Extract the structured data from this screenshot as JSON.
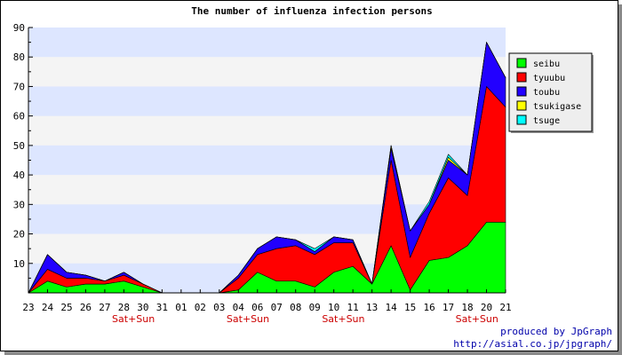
{
  "chart_data": {
    "type": "area",
    "stacked": true,
    "title": "The number of influenza infection persons",
    "xlabel": "",
    "ylabel": "",
    "ylim": [
      0,
      90
    ],
    "yticks": [
      10,
      20,
      30,
      40,
      50,
      60,
      70,
      80,
      90
    ],
    "grid": "horizontal alternating bands",
    "legend_position": "right",
    "categories": [
      "23",
      "24",
      "25",
      "26",
      "27",
      "28",
      "30",
      "31",
      "01",
      "02",
      "03",
      "04",
      "06",
      "07",
      "08",
      "09",
      "10",
      "11",
      "13",
      "14",
      "15",
      "16",
      "17",
      "18",
      "20",
      "21"
    ],
    "weekend_markers": [
      {
        "after_index": 5,
        "label": "Sat+Sun"
      },
      {
        "after_index": 11,
        "label": "Sat+Sun"
      },
      {
        "after_index": 16,
        "label": "Sat+Sun"
      },
      {
        "after_index": 23,
        "label": "Sat+Sun"
      }
    ],
    "series": [
      {
        "name": "seibu",
        "color": "#00ff00",
        "values": [
          0,
          4,
          2,
          3,
          3,
          4,
          2,
          0,
          0,
          0,
          0,
          1,
          7,
          4,
          4,
          2,
          7,
          9,
          3,
          16,
          1,
          11,
          12,
          16,
          24,
          24
        ]
      },
      {
        "name": "tyuubu",
        "color": "#ff0000",
        "values": [
          0,
          4,
          3,
          2,
          1,
          2,
          1,
          0,
          0,
          0,
          0,
          4,
          6,
          11,
          12,
          11,
          10,
          8,
          0,
          29,
          11,
          16,
          27,
          17,
          46,
          39
        ]
      },
      {
        "name": "toubu",
        "color": "#2200ff",
        "values": [
          0,
          5,
          2,
          1,
          0,
          1,
          0,
          0,
          0,
          0,
          0,
          1,
          2,
          4,
          2,
          1,
          2,
          1,
          0,
          4,
          9,
          3,
          6,
          7,
          15,
          10
        ]
      },
      {
        "name": "tsukigase",
        "color": "#ffff00",
        "values": [
          0,
          0,
          0,
          0,
          0,
          0,
          0,
          0,
          0,
          0,
          0,
          0,
          0,
          0,
          0,
          0,
          0,
          0,
          0,
          1,
          0,
          0,
          1,
          0,
          0,
          0
        ]
      },
      {
        "name": "tsuge",
        "color": "#00ffff",
        "values": [
          0,
          0,
          0,
          0,
          0,
          0,
          0,
          0,
          0,
          0,
          0,
          0,
          0,
          0,
          0,
          1,
          0,
          0,
          0,
          0,
          0,
          1,
          1,
          0,
          0,
          0
        ]
      }
    ]
  },
  "credit": {
    "line1": "produced by JpGraph",
    "line2": "http://asial.co.jp/jpgraph/"
  }
}
